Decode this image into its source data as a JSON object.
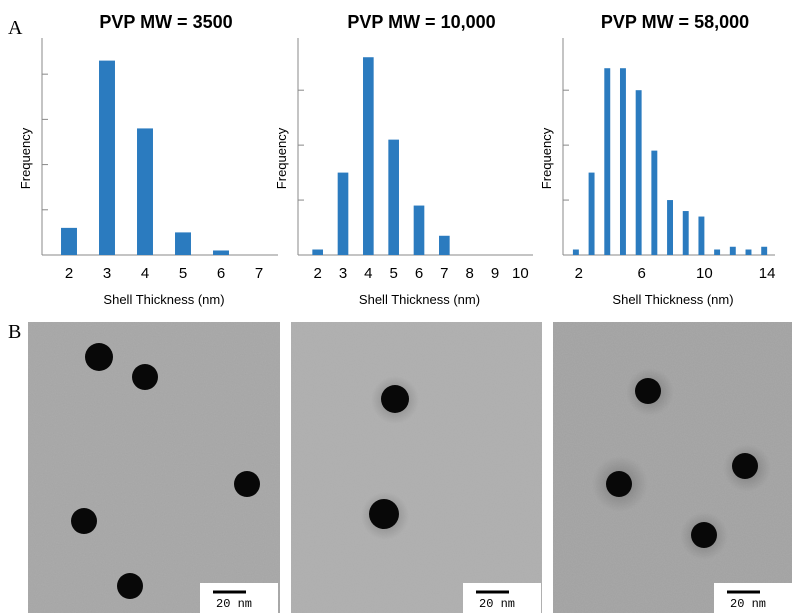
{
  "chart_data": [
    {
      "type": "bar",
      "title": "PVP MW = 3500",
      "x_label": "Shell Thickness (nm)",
      "y_label": "Frequency",
      "categories": [
        "2",
        "3",
        "4",
        "5",
        "6",
        "7"
      ],
      "values": [
        6,
        43,
        28,
        5,
        1,
        0
      ],
      "color": "#2b7bbf",
      "ylim": [
        0,
        48
      ],
      "yticks": [
        0,
        10,
        20,
        30,
        40
      ]
    },
    {
      "type": "bar",
      "title": "PVP MW = 10,000",
      "x_label": "Shell Thickness (nm)",
      "y_label": "Frequency",
      "categories": [
        "2",
        "3",
        "4",
        "5",
        "6",
        "7",
        "8",
        "9",
        "10"
      ],
      "values": [
        1,
        15,
        36,
        21,
        9,
        3.5,
        0,
        0,
        0
      ],
      "color": "#2b7bbf",
      "ylim": [
        0,
        39.5
      ],
      "yticks": [
        0,
        10,
        20,
        30
      ]
    },
    {
      "type": "bar",
      "title": "PVP MW = 58,000",
      "x_label": "Shell Thickness (nm)",
      "y_label": "Frequency",
      "categories": [
        "2",
        null,
        null,
        null,
        "6",
        null,
        null,
        null,
        "10",
        null,
        null,
        null,
        "14"
      ],
      "values": [
        1,
        15,
        34,
        34,
        30,
        19,
        10,
        8,
        7,
        1,
        1.5,
        1,
        1.5
      ],
      "color": "#2b7bbf",
      "ylim": [
        0,
        39.5
      ],
      "yticks": [
        0,
        10,
        20,
        30
      ]
    }
  ],
  "panel_labels": [
    "A",
    "B"
  ],
  "images": [
    {
      "scale_bar": "20 nm"
    },
    {
      "scale_bar": "20 nm"
    },
    {
      "scale_bar": "20 nm"
    }
  ]
}
